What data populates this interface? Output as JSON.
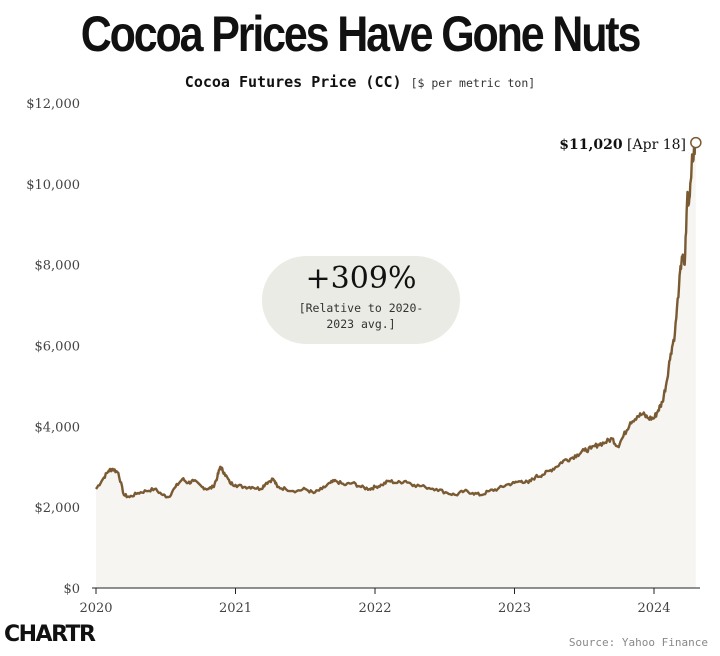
{
  "page": {
    "title": "Cocoa Prices Have Gone Nuts",
    "logo": "CHARTR",
    "source": "Source: Yahoo Finance"
  },
  "callout": {
    "value": "+309%",
    "note": "[Relative to 2020-2023 avg.]"
  },
  "last_point": {
    "value_label": "$11,020",
    "date_label": "[Apr 18]"
  },
  "colors": {
    "line": "#7a5a32",
    "fill": "#f6f5f1",
    "callout_bg": "#eaebe4"
  },
  "chart_data": {
    "type": "area",
    "title": "Cocoa Futures Price (CC)",
    "subtitle": "[$ per metric ton]",
    "xlabel": "",
    "ylabel": "",
    "ylim": [
      0,
      12000
    ],
    "xlim": [
      2020.0,
      2024.33
    ],
    "y_ticks": [
      0,
      2000,
      4000,
      6000,
      8000,
      10000,
      12000
    ],
    "y_tick_labels": [
      "$0",
      "$2,000",
      "$4,000",
      "$6,000",
      "$8,000",
      "$10,000",
      "$12,000"
    ],
    "x_ticks": [
      2020,
      2021,
      2022,
      2023,
      2024
    ],
    "x_tick_labels": [
      "2020",
      "2021",
      "2022",
      "2023",
      "2024"
    ],
    "grid": false,
    "legend": "none",
    "series": [
      {
        "values": [
          [
            2020.0,
            2450
          ],
          [
            2020.05,
            2700
          ],
          [
            2020.09,
            2900
          ],
          [
            2020.12,
            2950
          ],
          [
            2020.16,
            2850
          ],
          [
            2020.2,
            2300
          ],
          [
            2020.24,
            2250
          ],
          [
            2020.3,
            2350
          ],
          [
            2020.36,
            2400
          ],
          [
            2020.42,
            2450
          ],
          [
            2020.48,
            2300
          ],
          [
            2020.52,
            2250
          ],
          [
            2020.57,
            2500
          ],
          [
            2020.62,
            2700
          ],
          [
            2020.66,
            2600
          ],
          [
            2020.7,
            2650
          ],
          [
            2020.76,
            2500
          ],
          [
            2020.8,
            2450
          ],
          [
            2020.84,
            2500
          ],
          [
            2020.87,
            2750
          ],
          [
            2020.89,
            3000
          ],
          [
            2020.92,
            2850
          ],
          [
            2020.96,
            2600
          ],
          [
            2021.0,
            2550
          ],
          [
            2021.06,
            2500
          ],
          [
            2021.12,
            2500
          ],
          [
            2021.18,
            2450
          ],
          [
            2021.22,
            2600
          ],
          [
            2021.27,
            2700
          ],
          [
            2021.3,
            2500
          ],
          [
            2021.36,
            2450
          ],
          [
            2021.44,
            2400
          ],
          [
            2021.5,
            2450
          ],
          [
            2021.56,
            2350
          ],
          [
            2021.62,
            2450
          ],
          [
            2021.68,
            2600
          ],
          [
            2021.72,
            2650
          ],
          [
            2021.78,
            2550
          ],
          [
            2021.84,
            2600
          ],
          [
            2021.9,
            2500
          ],
          [
            2021.96,
            2450
          ],
          [
            2022.0,
            2500
          ],
          [
            2022.05,
            2550
          ],
          [
            2022.1,
            2650
          ],
          [
            2022.16,
            2600
          ],
          [
            2022.22,
            2650
          ],
          [
            2022.28,
            2550
          ],
          [
            2022.36,
            2500
          ],
          [
            2022.44,
            2450
          ],
          [
            2022.52,
            2350
          ],
          [
            2022.58,
            2300
          ],
          [
            2022.64,
            2400
          ],
          [
            2022.7,
            2350
          ],
          [
            2022.76,
            2300
          ],
          [
            2022.82,
            2400
          ],
          [
            2022.88,
            2450
          ],
          [
            2022.94,
            2550
          ],
          [
            2023.0,
            2600
          ],
          [
            2023.05,
            2650
          ],
          [
            2023.1,
            2600
          ],
          [
            2023.15,
            2750
          ],
          [
            2023.2,
            2800
          ],
          [
            2023.25,
            2900
          ],
          [
            2023.3,
            3000
          ],
          [
            2023.35,
            3150
          ],
          [
            2023.4,
            3200
          ],
          [
            2023.45,
            3300
          ],
          [
            2023.5,
            3400
          ],
          [
            2023.55,
            3450
          ],
          [
            2023.6,
            3550
          ],
          [
            2023.65,
            3600
          ],
          [
            2023.7,
            3700
          ],
          [
            2023.74,
            3500
          ],
          [
            2023.78,
            3750
          ],
          [
            2023.83,
            4100
          ],
          [
            2023.88,
            4250
          ],
          [
            2023.92,
            4300
          ],
          [
            2023.96,
            4200
          ],
          [
            2024.0,
            4200
          ],
          [
            2024.03,
            4400
          ],
          [
            2024.06,
            4600
          ],
          [
            2024.09,
            5100
          ],
          [
            2024.12,
            5800
          ],
          [
            2024.15,
            6300
          ],
          [
            2024.18,
            7500
          ],
          [
            2024.2,
            8200
          ],
          [
            2024.22,
            8000
          ],
          [
            2024.24,
            9800
          ],
          [
            2024.25,
            9500
          ],
          [
            2024.27,
            10500
          ],
          [
            2024.29,
            10800
          ],
          [
            2024.3,
            11020
          ]
        ]
      }
    ]
  }
}
